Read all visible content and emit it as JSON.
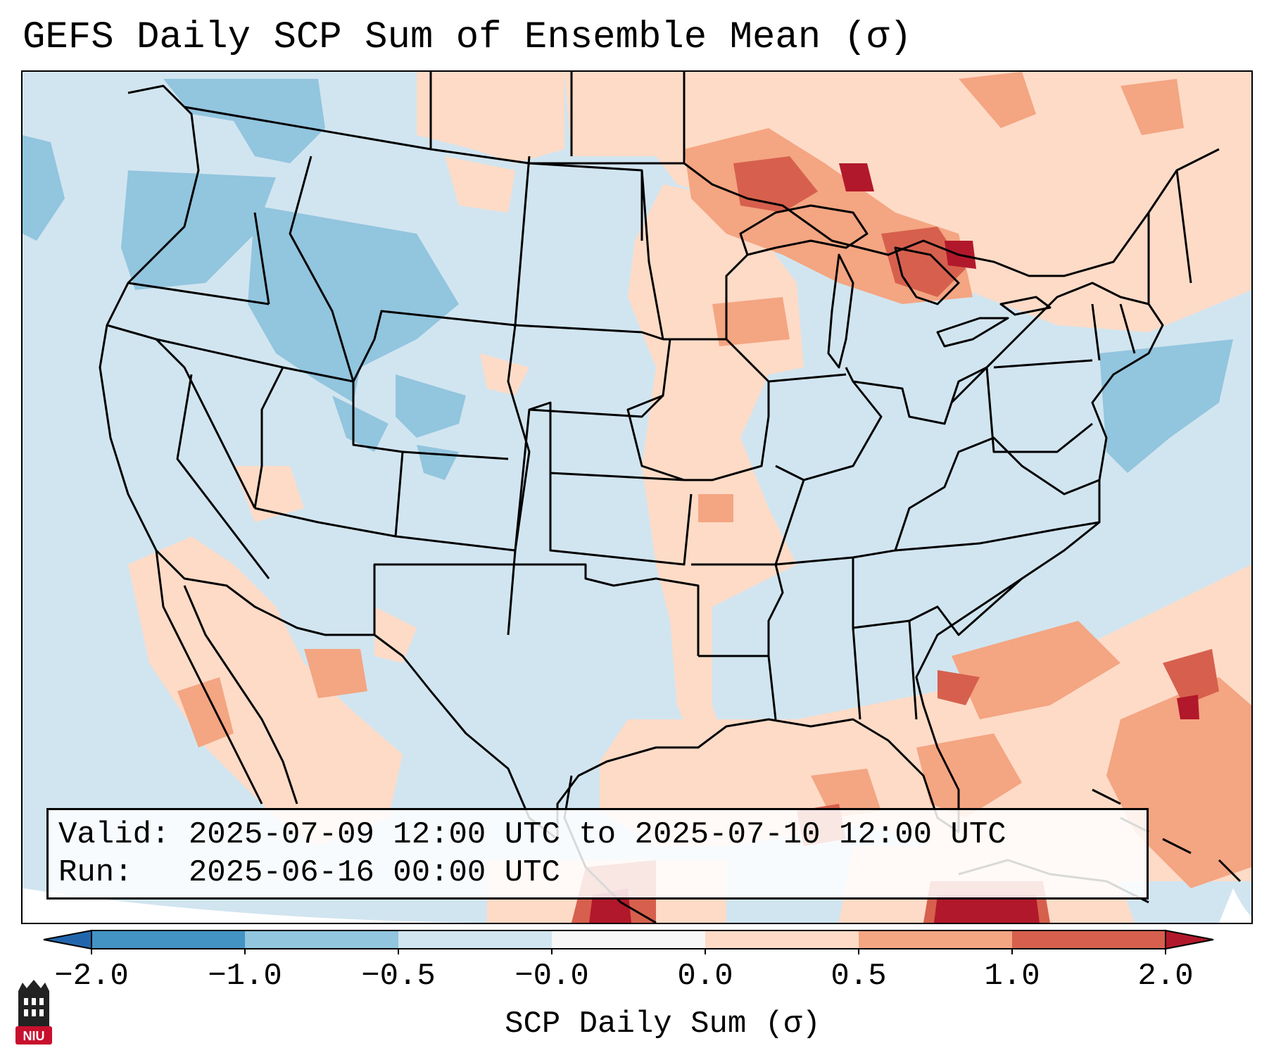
{
  "title": "GEFS Daily SCP Sum of Ensemble Mean (σ)",
  "info": {
    "valid_label": "Valid:",
    "valid_value": "2025-07-09 12:00 UTC to 2025-07-10 12:00 UTC",
    "run_label": "Run:",
    "run_value": "2025-06-16 00:00 UTC"
  },
  "colorbar": {
    "label": "SCP Daily Sum (σ)",
    "ticks": [
      "−2.0",
      "−1.0",
      "−0.5",
      "−0.0",
      "0.0",
      "0.5",
      "1.0",
      "2.0"
    ],
    "bins": [
      {
        "from": -2.0,
        "to": -1.0,
        "color": "#4393c3"
      },
      {
        "from": -1.0,
        "to": -0.5,
        "color": "#92c5de"
      },
      {
        "from": -0.5,
        "to": -0.0,
        "color": "#d1e5f0"
      },
      {
        "from": -0.0,
        "to": 0.0,
        "color": "#f7f7f7"
      },
      {
        "from": 0.0,
        "to": 0.5,
        "color": "#fddbc7"
      },
      {
        "from": 0.5,
        "to": 1.0,
        "color": "#f4a582"
      },
      {
        "from": 1.0,
        "to": 2.0,
        "color": "#d6604d"
      }
    ],
    "under_color": "#2166ac",
    "over_color": "#b2182b"
  },
  "logo": {
    "text": "NIU",
    "color": "#c8102e"
  },
  "colors": {
    "neg_strong": "#92c5de",
    "neg_weak": "#d1e5f0",
    "pos_weak": "#fddbc7",
    "pos_mid": "#f4a582",
    "pos_strong": "#d6604d",
    "pos_extreme": "#b2182b"
  }
}
